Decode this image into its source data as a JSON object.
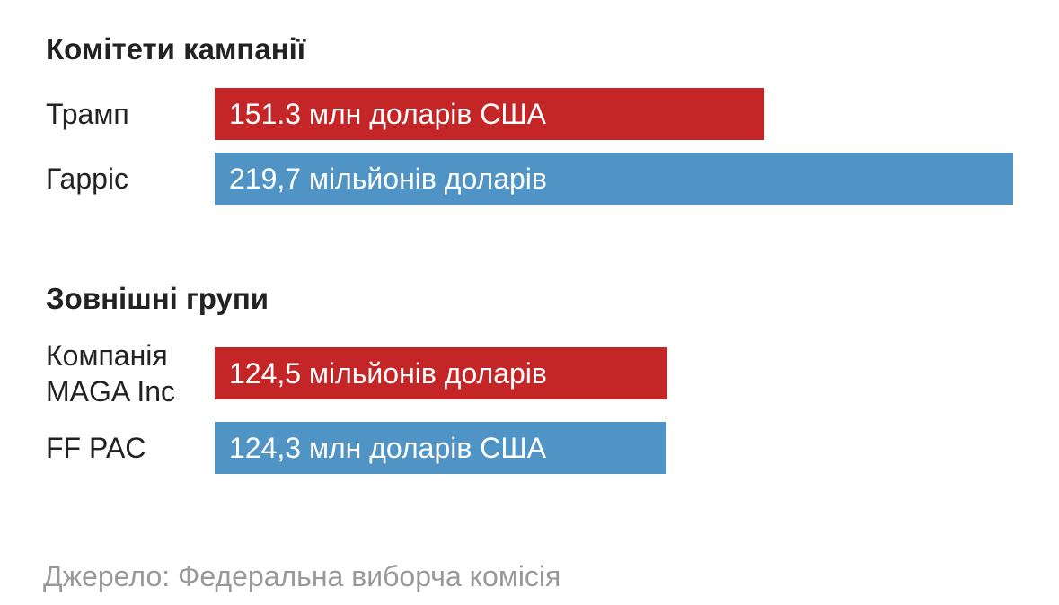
{
  "chart_data": [
    {
      "type": "bar",
      "title": "Комітети кампанії",
      "categories": [
        "Трамп",
        "Гарріс"
      ],
      "values": [
        151.3,
        219.7
      ],
      "value_labels": [
        "151.3 млн доларів США",
        "219,7 мільйонів доларів"
      ],
      "colors": [
        "#c42526",
        "#5093c5"
      ]
    },
    {
      "type": "bar",
      "title": "Зовнішні групи",
      "categories": [
        "Компанія MAGA Inc",
        "FF PAC"
      ],
      "values": [
        124.5,
        124.3
      ],
      "value_labels": [
        "124,5 мільйонів доларів",
        "124,3 млн доларів США"
      ],
      "colors": [
        "#c42526",
        "#5093c5"
      ]
    }
  ],
  "source": "Джерело: Федеральна виборча комісія"
}
